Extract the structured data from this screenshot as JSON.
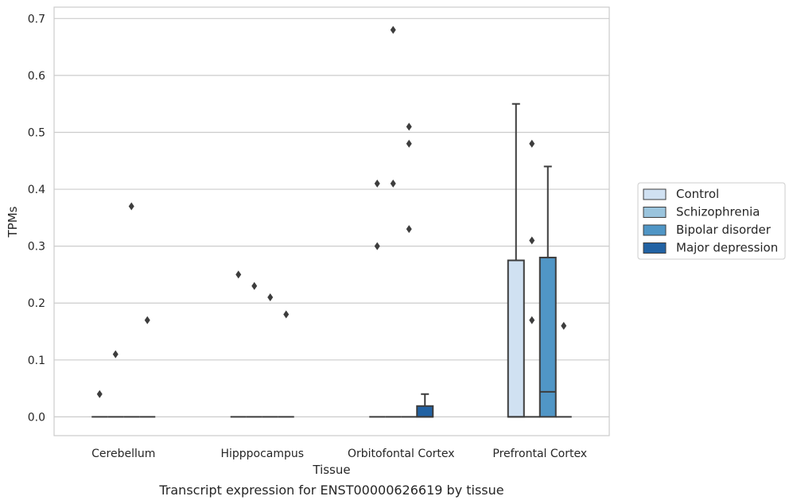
{
  "chart_data": {
    "type": "box",
    "caption": "Transcript expression for ENST00000626619 by tissue",
    "xlabel": "Tissue",
    "ylabel": "TPMs",
    "ylim": [
      -0.033,
      0.72
    ],
    "yticks": [
      0.0,
      0.1,
      0.2,
      0.3,
      0.4,
      0.5,
      0.6,
      0.7
    ],
    "ytick_labels": [
      "0.0",
      "0.1",
      "0.2",
      "0.3",
      "0.4",
      "0.5",
      "0.6",
      "0.7"
    ],
    "categories": [
      "Cerebellum",
      "Hipppocampus",
      "Orbitofontal Cortex",
      "Prefrontal Cortex"
    ],
    "legend_position": "right",
    "grid": true,
    "series": [
      {
        "name": "Control",
        "color": "#d0e1f2",
        "boxes": [
          {
            "q1": 0,
            "median": 0,
            "q3": 0,
            "whislo": 0,
            "whishi": 0,
            "fliers": [
              0.04
            ]
          },
          {
            "q1": 0,
            "median": 0,
            "q3": 0,
            "whislo": 0,
            "whishi": 0,
            "fliers": [
              0.25
            ]
          },
          {
            "q1": 0,
            "median": 0,
            "q3": 0,
            "whislo": 0,
            "whishi": 0,
            "fliers": [
              0.41,
              0.3
            ]
          },
          {
            "q1": 0,
            "median": 0,
            "q3": 0.275,
            "whislo": 0,
            "whishi": 0.55,
            "fliers": []
          }
        ]
      },
      {
        "name": "Schizophrenia",
        "color": "#9ac4dd",
        "boxes": [
          {
            "q1": 0,
            "median": 0,
            "q3": 0,
            "whislo": 0,
            "whishi": 0,
            "fliers": [
              0.11
            ]
          },
          {
            "q1": 0,
            "median": 0,
            "q3": 0,
            "whislo": 0,
            "whishi": 0,
            "fliers": [
              0.23
            ]
          },
          {
            "q1": 0,
            "median": 0,
            "q3": 0,
            "whislo": 0,
            "whishi": 0,
            "fliers": [
              0.68,
              0.41
            ]
          },
          {
            "q1": 0,
            "median": 0,
            "q3": 0,
            "whislo": 0,
            "whishi": 0,
            "fliers": [
              0.48,
              0.31,
              0.17
            ]
          }
        ]
      },
      {
        "name": "Bipolar disorder",
        "color": "#5096c6",
        "boxes": [
          {
            "q1": 0,
            "median": 0,
            "q3": 0,
            "whislo": 0,
            "whishi": 0,
            "fliers": [
              0.37
            ]
          },
          {
            "q1": 0,
            "median": 0,
            "q3": 0,
            "whislo": 0,
            "whishi": 0,
            "fliers": [
              0.21
            ]
          },
          {
            "q1": 0,
            "median": 0,
            "q3": 0,
            "whislo": 0,
            "whishi": 0,
            "fliers": [
              0.51,
              0.48,
              0.33
            ]
          },
          {
            "q1": 0,
            "median": 0.044,
            "q3": 0.28,
            "whislo": 0,
            "whishi": 0.44,
            "fliers": []
          }
        ]
      },
      {
        "name": "Major depression",
        "color": "#2262a3",
        "boxes": [
          {
            "q1": 0,
            "median": 0,
            "q3": 0,
            "whislo": 0,
            "whishi": 0,
            "fliers": [
              0.17
            ]
          },
          {
            "q1": 0,
            "median": 0,
            "q3": 0,
            "whislo": 0,
            "whishi": 0,
            "fliers": [
              0.18
            ]
          },
          {
            "q1": 0,
            "median": 0,
            "q3": 0.019,
            "whislo": 0,
            "whishi": 0.04,
            "fliers": []
          },
          {
            "q1": 0,
            "median": 0,
            "q3": 0,
            "whislo": 0,
            "whishi": 0,
            "fliers": [
              0.16
            ]
          }
        ]
      }
    ]
  }
}
